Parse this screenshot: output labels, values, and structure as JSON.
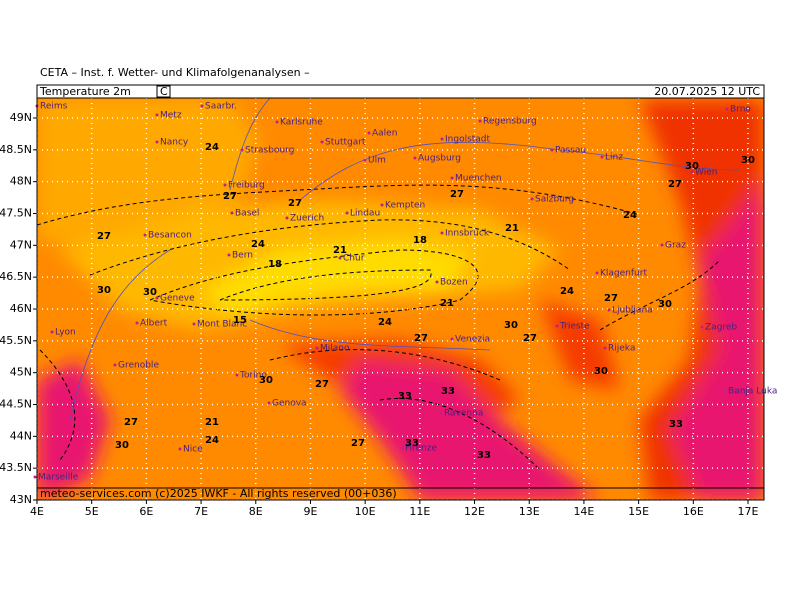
{
  "header": {
    "institute": "CETA – Inst. f. Wetter- und Klimafolgenanalysen –",
    "parameter": "Temperature 2m",
    "unit": "C",
    "valid_time": "20.07.2025 12 UTC"
  },
  "footer": "meteo-services.com (c)2025 IWKF - All rights reserved (00+036)",
  "map": {
    "lat_ticks": [
      {
        "value": 49,
        "label": "49N"
      },
      {
        "value": 48.5,
        "label": "48.5N"
      },
      {
        "value": 48,
        "label": "48N"
      },
      {
        "value": 47.5,
        "label": "47.5N"
      },
      {
        "value": 47,
        "label": "47N"
      },
      {
        "value": 46.5,
        "label": "46.5N"
      },
      {
        "value": 46,
        "label": "46N"
      },
      {
        "value": 45.5,
        "label": "45.5N"
      },
      {
        "value": 45,
        "label": "45N"
      },
      {
        "value": 44.5,
        "label": "44.5N"
      },
      {
        "value": 44,
        "label": "44N"
      },
      {
        "value": 43.5,
        "label": "43.5N"
      },
      {
        "value": 43,
        "label": "43N"
      }
    ],
    "lon_ticks": [
      {
        "value": 4,
        "label": "4E"
      },
      {
        "value": 5,
        "label": "5E"
      },
      {
        "value": 6,
        "label": "6E"
      },
      {
        "value": 7,
        "label": "7E"
      },
      {
        "value": 8,
        "label": "8E"
      },
      {
        "value": 9,
        "label": "9E"
      },
      {
        "value": 10,
        "label": "10E"
      },
      {
        "value": 11,
        "label": "11E"
      },
      {
        "value": 12,
        "label": "12E"
      },
      {
        "value": 13,
        "label": "13E"
      },
      {
        "value": 14,
        "label": "14E"
      },
      {
        "value": 15,
        "label": "15E"
      },
      {
        "value": 16,
        "label": "16E"
      },
      {
        "value": 17,
        "label": "17E"
      }
    ],
    "cities": [
      "Reims",
      "Metz",
      "Saarbr.",
      "Karlsruhe",
      "Nancy",
      "Strasbourg",
      "Stuttgart",
      "Aalen",
      "Ingolstadt",
      "Regensburg",
      "Passau",
      "Ulm",
      "Augsburg",
      "Linz",
      "Wien",
      "Brno",
      "Muenchen",
      "Freiburg",
      "Kempten",
      "Salzburg",
      "Basel",
      "Zuerich",
      "Lindau",
      "Innsbruck",
      "Besancon",
      "Bern",
      "Chur",
      "Bozen",
      "Graz",
      "Klagenfurt",
      "Geneve",
      "Ljubljana",
      "Lyon",
      "Albert",
      "Torino",
      "Milano",
      "Venezia",
      "Trieste",
      "Rijeka",
      "Zagreb",
      "Genova",
      "Ravenna",
      "Firenze",
      "Nice",
      "Marseille",
      "Grenoble",
      "Banja Luka",
      "Mont Blanc"
    ],
    "contour_labels": [
      24,
      27,
      27,
      27,
      24,
      27,
      27,
      24,
      21,
      21,
      18,
      18,
      15,
      21,
      24,
      24,
      27,
      30,
      30,
      30,
      30,
      27,
      27,
      30,
      30,
      33,
      33,
      33,
      33,
      30,
      24,
      21,
      27,
      27,
      30,
      33,
      30,
      27
    ]
  }
}
